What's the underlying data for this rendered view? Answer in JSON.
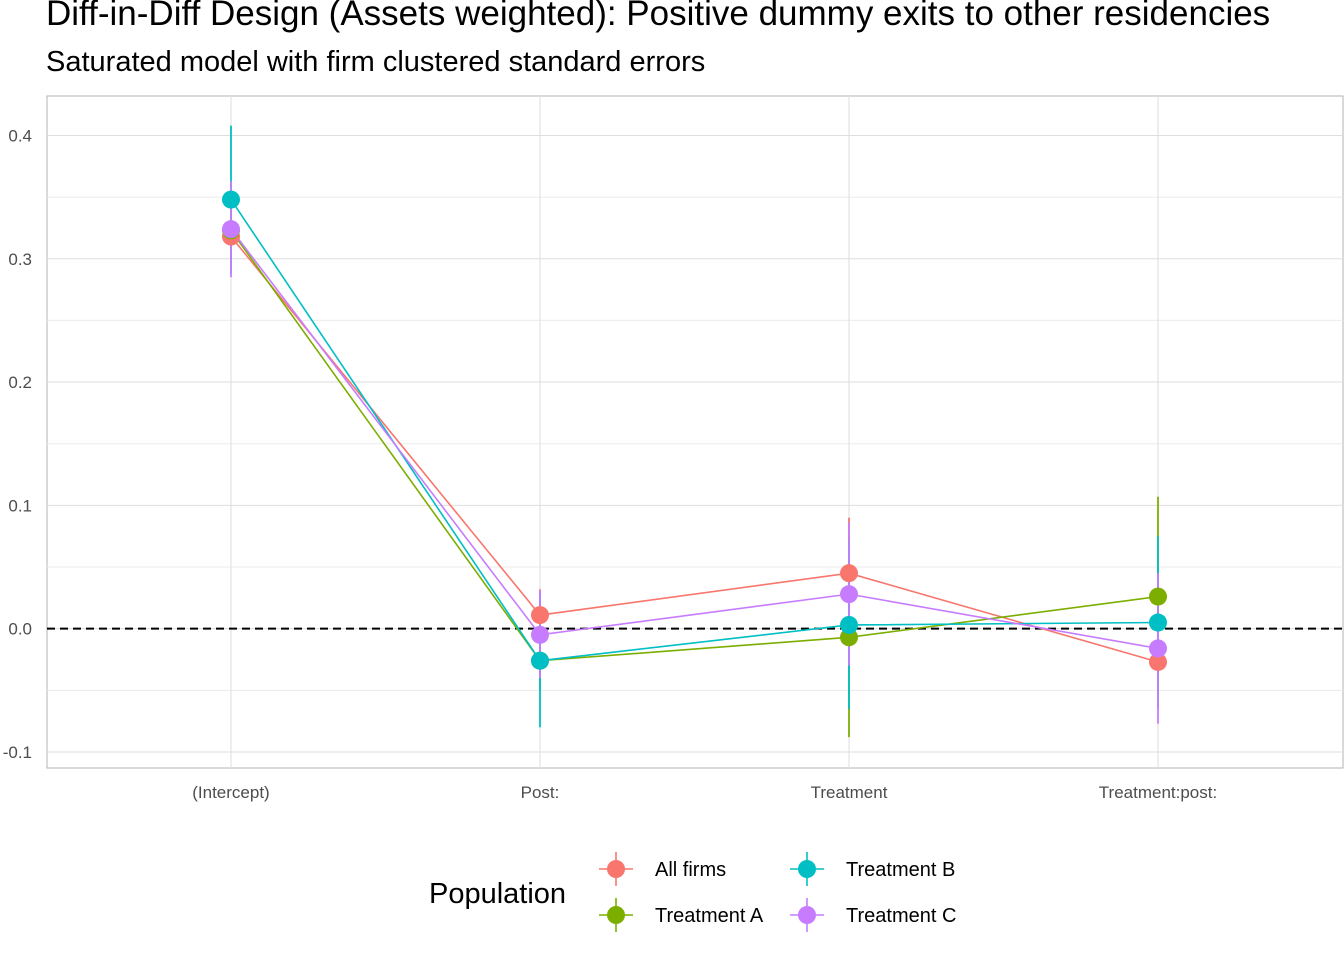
{
  "chart_data": {
    "type": "scatter",
    "title": "Diff-in-Diff Design (Assets weighted): Positive dummy exits to other residencies",
    "subtitle": "Saturated model with firm clustered standard errors",
    "categories": [
      "(Intercept)",
      "Post:",
      "Treatment",
      "Treatment:post:"
    ],
    "ylim": [
      -0.113,
      0.432
    ],
    "yticks": [
      -0.1,
      0.0,
      0.1,
      0.2,
      0.3,
      0.4
    ],
    "ytick_labels": [
      "-0.1",
      "0.0",
      "0.1",
      "0.2",
      "0.3",
      "0.4"
    ],
    "reference_line": 0,
    "grid": true,
    "legend_title": "Population",
    "legend_position": "bottom",
    "series": [
      {
        "name": "All firms",
        "color": "#F8766D",
        "values": [
          0.318,
          0.011,
          0.045,
          -0.027
        ],
        "lower": [
          0.3,
          -0.01,
          0.0,
          -0.05
        ],
        "upper": [
          0.336,
          0.032,
          0.09,
          -0.004
        ]
      },
      {
        "name": "Treatment A",
        "color": "#7CAE00",
        "values": [
          0.323,
          -0.026,
          -0.007,
          0.026
        ],
        "lower": [
          0.3,
          -0.05,
          -0.088,
          -0.055
        ],
        "upper": [
          0.346,
          -0.002,
          0.074,
          0.107
        ]
      },
      {
        "name": "Treatment B",
        "color": "#00BFC4",
        "values": [
          0.348,
          -0.026,
          0.003,
          0.005
        ],
        "lower": [
          0.288,
          -0.08,
          -0.065,
          -0.065
        ],
        "upper": [
          0.408,
          0.028,
          0.071,
          0.075
        ]
      },
      {
        "name": "Treatment C",
        "color": "#C77CFF",
        "values": [
          0.324,
          -0.005,
          0.028,
          -0.016
        ],
        "lower": [
          0.285,
          -0.04,
          -0.03,
          -0.077
        ],
        "upper": [
          0.363,
          0.031,
          0.086,
          0.045
        ]
      }
    ]
  }
}
